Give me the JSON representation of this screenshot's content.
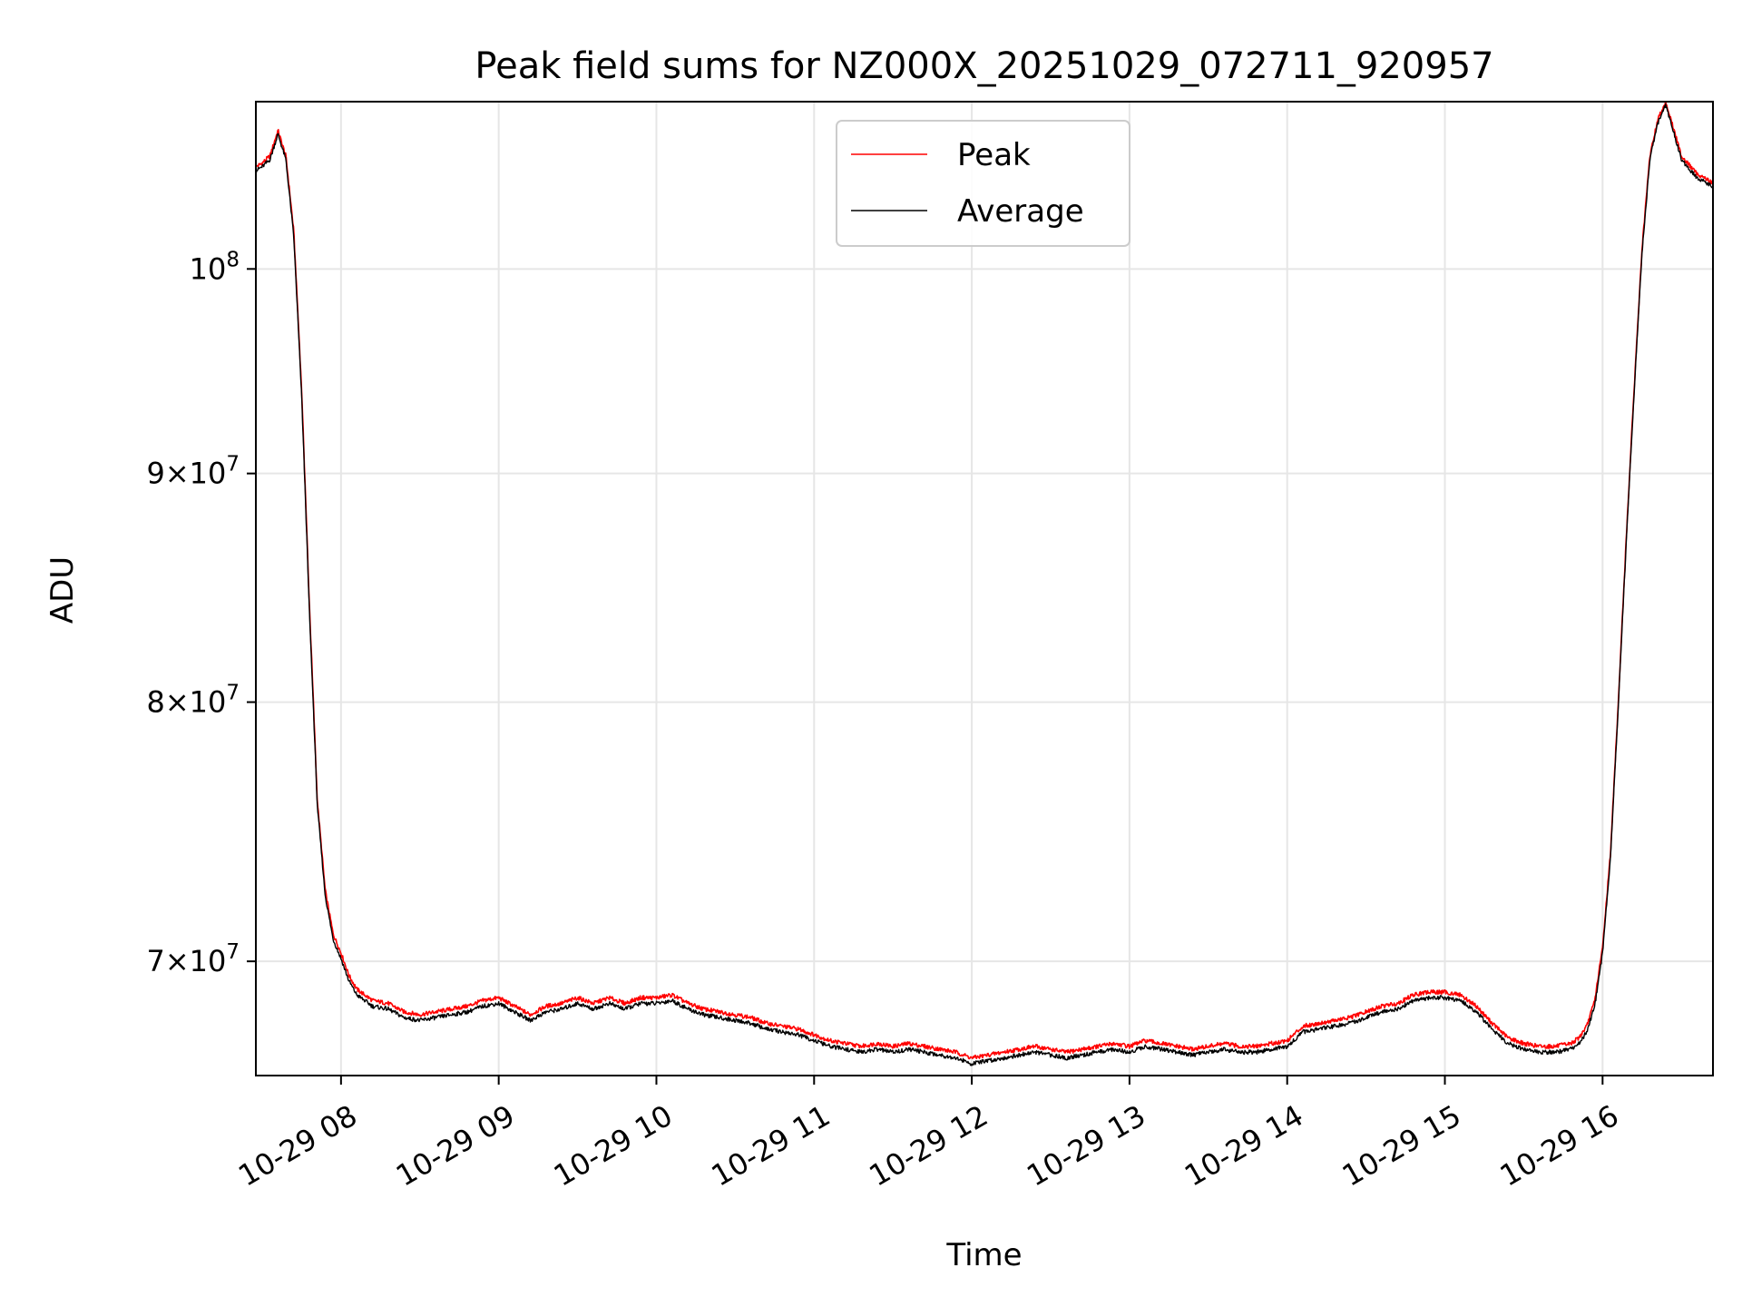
{
  "chart_data": {
    "type": "line",
    "title": "Peak field sums for NZ000X_20251029_072711_920957",
    "xlabel": "Time",
    "ylabel": "ADU",
    "yscale": "log",
    "xlim": [
      7.46,
      16.7
    ],
    "ylim": [
      66000000,
      109000000
    ],
    "grid": true,
    "legend_position": "upper center",
    "x_ticks": [
      {
        "value": 8,
        "label": "10-29 08"
      },
      {
        "value": 9,
        "label": "10-29 09"
      },
      {
        "value": 10,
        "label": "10-29 10"
      },
      {
        "value": 11,
        "label": "10-29 11"
      },
      {
        "value": 12,
        "label": "10-29 12"
      },
      {
        "value": 13,
        "label": "10-29 13"
      },
      {
        "value": 14,
        "label": "10-29 14"
      },
      {
        "value": 15,
        "label": "10-29 15"
      },
      {
        "value": 16,
        "label": "10-29 16"
      }
    ],
    "y_ticks": [
      {
        "value": 70000000,
        "mantissa": "7",
        "exp": "7",
        "type": "mul"
      },
      {
        "value": 80000000,
        "mantissa": "8",
        "exp": "7",
        "type": "mul"
      },
      {
        "value": 90000000,
        "mantissa": "9",
        "exp": "7",
        "type": "mul"
      },
      {
        "value": 100000000,
        "mantissa": "",
        "exp": "8",
        "type": "pow"
      }
    ],
    "series": [
      {
        "name": "Peak",
        "color": "#ff0000",
        "x": [
          7.46,
          7.5,
          7.55,
          7.6,
          7.65,
          7.7,
          7.75,
          7.8,
          7.85,
          7.9,
          7.95,
          8.0,
          8.05,
          8.1,
          8.2,
          8.3,
          8.4,
          8.5,
          8.6,
          8.7,
          8.8,
          8.9,
          9.0,
          9.1,
          9.2,
          9.3,
          9.4,
          9.5,
          9.6,
          9.7,
          9.8,
          9.9,
          10.0,
          10.1,
          10.2,
          10.3,
          10.4,
          10.5,
          10.6,
          10.7,
          10.8,
          10.9,
          11.0,
          11.1,
          11.2,
          11.3,
          11.4,
          11.5,
          11.6,
          11.7,
          11.8,
          11.9,
          12.0,
          12.1,
          12.2,
          12.3,
          12.4,
          12.5,
          12.6,
          12.7,
          12.8,
          12.9,
          13.0,
          13.1,
          13.2,
          13.3,
          13.4,
          13.5,
          13.6,
          13.7,
          13.8,
          13.9,
          14.0,
          14.1,
          14.2,
          14.3,
          14.4,
          14.5,
          14.6,
          14.7,
          14.8,
          14.9,
          15.0,
          15.1,
          15.2,
          15.3,
          15.4,
          15.5,
          15.6,
          15.7,
          15.8,
          15.85,
          15.9,
          15.95,
          16.0,
          16.05,
          16.1,
          16.15,
          16.2,
          16.25,
          16.3,
          16.35,
          16.4,
          16.45,
          16.5,
          16.55,
          16.6,
          16.65,
          16.7
        ],
        "values": [
          105400000,
          105600000,
          106000000,
          107400000,
          106000000,
          102000000,
          94000000,
          84000000,
          76000000,
          72600000,
          71000000,
          70300000,
          69500000,
          69000000,
          68600000,
          68500000,
          68200000,
          68100000,
          68200000,
          68300000,
          68400000,
          68600000,
          68700000,
          68400000,
          68100000,
          68400000,
          68500000,
          68700000,
          68500000,
          68700000,
          68500000,
          68700000,
          68700000,
          68800000,
          68500000,
          68300000,
          68200000,
          68100000,
          68000000,
          67800000,
          67700000,
          67600000,
          67400000,
          67200000,
          67100000,
          67000000,
          67100000,
          67000000,
          67100000,
          67000000,
          66900000,
          66800000,
          66600000,
          66700000,
          66800000,
          66900000,
          67000000,
          66900000,
          66800000,
          66900000,
          67000000,
          67100000,
          67000000,
          67200000,
          67100000,
          67000000,
          66900000,
          67000000,
          67100000,
          67000000,
          67000000,
          67100000,
          67200000,
          67700000,
          67800000,
          67900000,
          68000000,
          68200000,
          68400000,
          68500000,
          68800000,
          68900000,
          68900000,
          68800000,
          68400000,
          67800000,
          67300000,
          67100000,
          67000000,
          67000000,
          67100000,
          67300000,
          67700000,
          68600000,
          70500000,
          74000000,
          80000000,
          87000000,
          94000000,
          101000000,
          106000000,
          108000000,
          109000000,
          107500000,
          106000000,
          105500000,
          105000000,
          104800000,
          104500000
        ]
      },
      {
        "name": "Average",
        "color": "#000000",
        "x": [
          7.46,
          7.5,
          7.55,
          7.6,
          7.65,
          7.7,
          7.75,
          7.8,
          7.85,
          7.9,
          7.95,
          8.0,
          8.05,
          8.1,
          8.2,
          8.3,
          8.4,
          8.5,
          8.6,
          8.7,
          8.8,
          8.9,
          9.0,
          9.1,
          9.2,
          9.3,
          9.4,
          9.5,
          9.6,
          9.7,
          9.8,
          9.9,
          10.0,
          10.1,
          10.2,
          10.3,
          10.4,
          10.5,
          10.6,
          10.7,
          10.8,
          10.9,
          11.0,
          11.1,
          11.2,
          11.3,
          11.4,
          11.5,
          11.6,
          11.7,
          11.8,
          11.9,
          12.0,
          12.1,
          12.2,
          12.3,
          12.4,
          12.5,
          12.6,
          12.7,
          12.8,
          12.9,
          13.0,
          13.1,
          13.2,
          13.3,
          13.4,
          13.5,
          13.6,
          13.7,
          13.8,
          13.9,
          14.0,
          14.1,
          14.2,
          14.3,
          14.4,
          14.5,
          14.6,
          14.7,
          14.8,
          14.9,
          15.0,
          15.1,
          15.2,
          15.3,
          15.4,
          15.5,
          15.6,
          15.7,
          15.8,
          15.85,
          15.9,
          15.95,
          16.0,
          16.05,
          16.1,
          16.15,
          16.2,
          16.25,
          16.3,
          16.35,
          16.4,
          16.45,
          16.5,
          16.55,
          16.6,
          16.65,
          16.7
        ],
        "values": [
          105200000,
          105400000,
          105800000,
          107200000,
          105800000,
          101700000,
          93700000,
          83700000,
          75800000,
          72400000,
          70800000,
          70100000,
          69300000,
          68800000,
          68400000,
          68300000,
          68000000,
          67900000,
          68000000,
          68100000,
          68200000,
          68400000,
          68500000,
          68200000,
          67900000,
          68200000,
          68300000,
          68500000,
          68300000,
          68500000,
          68300000,
          68500000,
          68500000,
          68600000,
          68300000,
          68100000,
          68000000,
          67900000,
          67800000,
          67600000,
          67500000,
          67400000,
          67200000,
          67000000,
          66900000,
          66800000,
          66900000,
          66800000,
          66900000,
          66800000,
          66700000,
          66600000,
          66400000,
          66500000,
          66600000,
          66700000,
          66800000,
          66700000,
          66600000,
          66700000,
          66800000,
          66900000,
          66800000,
          67000000,
          66900000,
          66800000,
          66700000,
          66800000,
          66900000,
          66800000,
          66800000,
          66900000,
          67000000,
          67500000,
          67600000,
          67700000,
          67800000,
          68000000,
          68200000,
          68300000,
          68600000,
          68700000,
          68700000,
          68600000,
          68200000,
          67600000,
          67100000,
          66900000,
          66800000,
          66800000,
          66900000,
          67100000,
          67500000,
          68400000,
          70300000,
          73800000,
          79800000,
          86800000,
          93800000,
          100800000,
          105800000,
          107800000,
          108800000,
          107300000,
          105800000,
          105300000,
          104800000,
          104600000,
          104300000
        ]
      }
    ]
  }
}
